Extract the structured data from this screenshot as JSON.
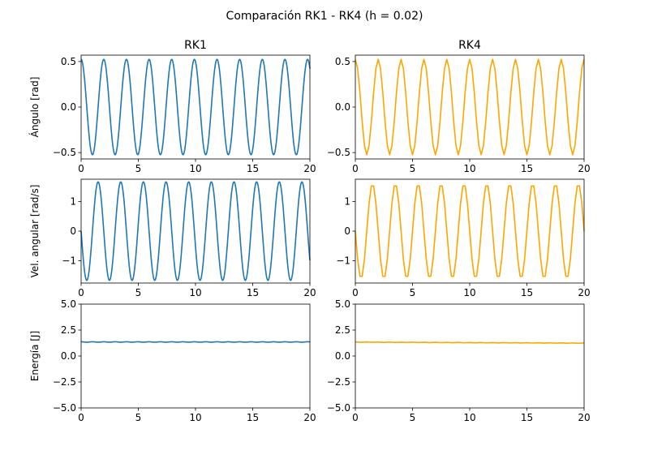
{
  "figure": {
    "suptitle": "Comparación RK1 - RK4 (h = 0.02)"
  },
  "colors": {
    "rk1": "#1f77b4",
    "rk4": "#ffa500"
  },
  "chart_data": [
    {
      "id": "angle_rk1",
      "type": "line",
      "row": 0,
      "col": 0,
      "title": "RK1",
      "xlabel": "",
      "ylabel": "Ángulo [rad]",
      "xlim": [
        0,
        20
      ],
      "ylim": [
        -0.57,
        0.57
      ],
      "xticks": [
        0,
        5,
        10,
        15,
        20
      ],
      "yticks": [
        -0.5,
        0.0,
        0.5
      ],
      "series": [
        {
          "color": "#1f77b4",
          "amplitude": 0.5236,
          "period": 1.98,
          "phase": "cos",
          "t_start": 0,
          "t_end": 20,
          "samples": 1001
        }
      ]
    },
    {
      "id": "angle_rk4",
      "type": "line",
      "row": 0,
      "col": 1,
      "title": "RK4",
      "xlabel": "",
      "ylabel": "",
      "xlim": [
        0,
        20
      ],
      "ylim": [
        -0.57,
        0.57
      ],
      "xticks": [
        0,
        5,
        10,
        15,
        20
      ],
      "yticks": [
        -0.5,
        0.0,
        0.5
      ],
      "series": [
        {
          "color": "#ffa500",
          "amplitude": 0.5236,
          "period": 2.0,
          "phase": "cos",
          "t_start": 0,
          "t_end": 20,
          "samples": 101
        }
      ]
    },
    {
      "id": "omega_rk1",
      "type": "line",
      "row": 1,
      "col": 0,
      "title": "",
      "xlabel": "",
      "ylabel": "Vel. angular [rad/s]",
      "xlim": [
        0,
        20
      ],
      "ylim": [
        -1.75,
        1.75
      ],
      "xticks": [
        0,
        5,
        10,
        15,
        20
      ],
      "yticks": [
        -1,
        0,
        1
      ],
      "series": [
        {
          "color": "#1f77b4",
          "amplitude": 1.66,
          "period": 1.98,
          "phase": "-sin",
          "t_start": 0,
          "t_end": 20,
          "samples": 1001
        }
      ]
    },
    {
      "id": "omega_rk4",
      "type": "line",
      "row": 1,
      "col": 1,
      "title": "",
      "xlabel": "",
      "ylabel": "",
      "xlim": [
        0,
        20
      ],
      "ylim": [
        -1.75,
        1.75
      ],
      "xticks": [
        0,
        5,
        10,
        15,
        20
      ],
      "yticks": [
        -1,
        0,
        1
      ],
      "series": [
        {
          "color": "#ffa500",
          "amplitude": 1.6,
          "period": 2.0,
          "phase": "-sin",
          "t_start": 0,
          "t_end": 20,
          "samples": 101
        }
      ]
    },
    {
      "id": "energy_rk1",
      "type": "line",
      "row": 2,
      "col": 0,
      "title": "",
      "xlabel": "",
      "ylabel": "Energía [J]",
      "xlim": [
        0,
        20
      ],
      "ylim": [
        -5.0,
        5.0
      ],
      "xticks": [
        0,
        5,
        10,
        15,
        20
      ],
      "yticks": [
        -5.0,
        -2.5,
        0.0,
        2.5,
        5.0
      ],
      "series": [
        {
          "color": "#1f77b4",
          "kind": "energy",
          "start": 1.35,
          "end": 1.35,
          "ripple": 0.02,
          "ripple_period": 0.99,
          "t_start": 0,
          "t_end": 20,
          "samples": 1001
        }
      ]
    },
    {
      "id": "energy_rk4",
      "type": "line",
      "row": 2,
      "col": 1,
      "title": "",
      "xlabel": "",
      "ylabel": "",
      "xlim": [
        0,
        20
      ],
      "ylim": [
        -5.0,
        5.0
      ],
      "xticks": [
        0,
        5,
        10,
        15,
        20
      ],
      "yticks": [
        -5.0,
        -2.5,
        0.0,
        2.5,
        5.0
      ],
      "series": [
        {
          "color": "#ffa500",
          "kind": "energy",
          "start": 1.34,
          "end": 1.24,
          "ripple": 0.015,
          "ripple_period": 1.0,
          "t_start": 0,
          "t_end": 20,
          "samples": 101
        }
      ]
    }
  ]
}
